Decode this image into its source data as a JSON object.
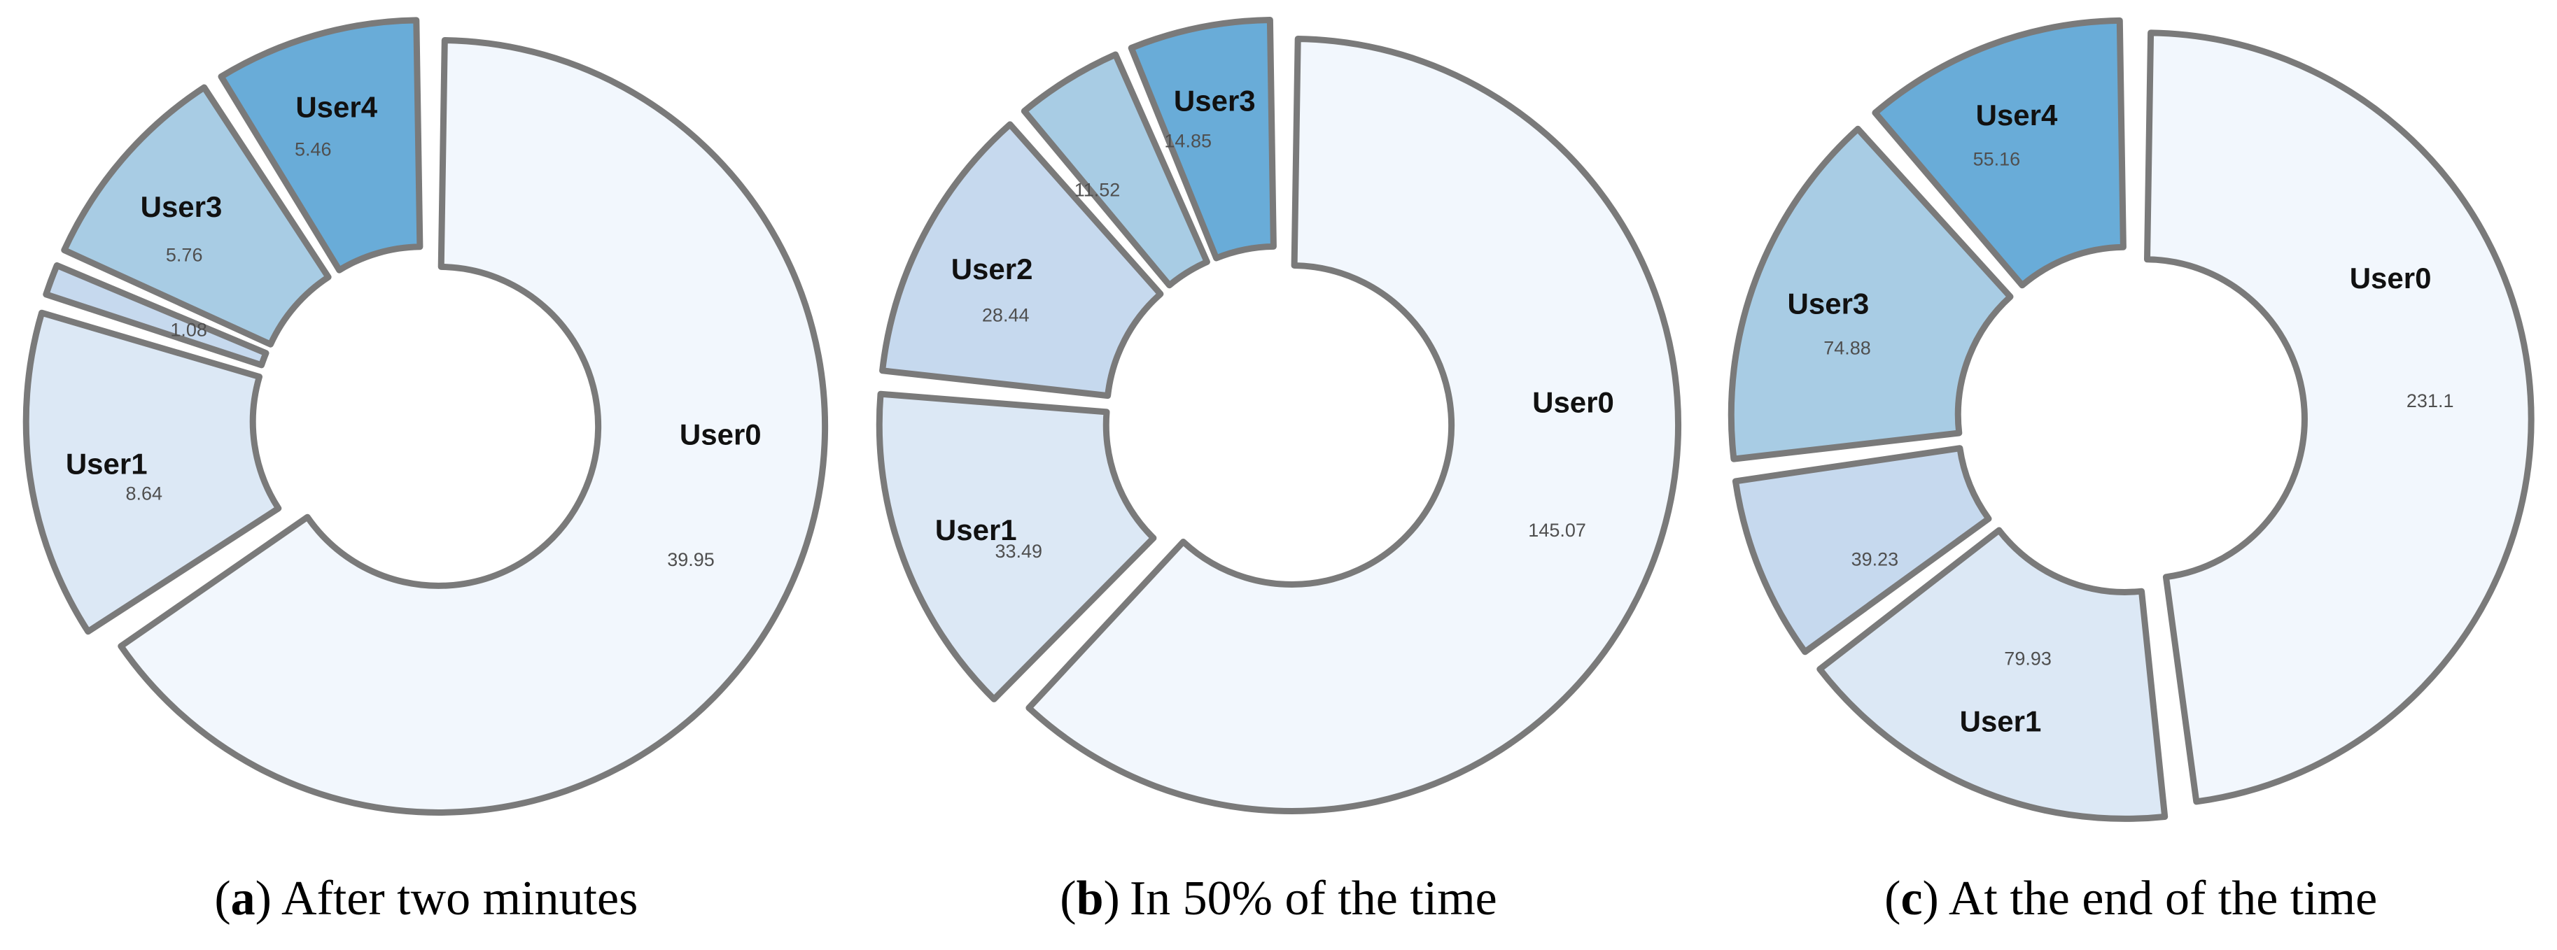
{
  "palette": [
    "#f2f7fd",
    "#dce8f5",
    "#c6d9ee",
    "#a8cce4",
    "#69acd8"
  ],
  "stroke_color": "#7a7a7a",
  "name_color": "#111111",
  "value_color": "#4f4f4f",
  "chart_data": [
    {
      "type": "pie",
      "subtype": "exploded-donut",
      "direction": "clockwise",
      "start_angle_deg": 0,
      "legend_position": "none",
      "caption": {
        "open": "(",
        "letter": "a",
        "close": ")",
        "text": "After two minutes"
      },
      "slices": [
        {
          "name": "User0",
          "value": 39.95
        },
        {
          "name": "User1",
          "value": 8.64
        },
        {
          "name": "",
          "value": 1.08
        },
        {
          "name": "User3",
          "value": 5.76
        },
        {
          "name": "User4",
          "value": 5.46
        }
      ]
    },
    {
      "type": "pie",
      "subtype": "exploded-donut",
      "direction": "clockwise",
      "start_angle_deg": 0,
      "legend_position": "none",
      "caption": {
        "open": "(",
        "letter": "b",
        "close": ")",
        "text": "In 50% of the time"
      },
      "slices": [
        {
          "name": "User0",
          "value": 145.07
        },
        {
          "name": "User1",
          "value": 33.49
        },
        {
          "name": "User2",
          "value": 28.44
        },
        {
          "name": "",
          "value": 11.52
        },
        {
          "name": "User3",
          "value": 14.85
        }
      ]
    },
    {
      "type": "pie",
      "subtype": "exploded-donut",
      "direction": "clockwise",
      "start_angle_deg": 0,
      "legend_position": "none",
      "caption": {
        "open": "(",
        "letter": "c",
        "close": ")",
        "text": "At the end of the time"
      },
      "slices": [
        {
          "name": "User0",
          "value": 231.1
        },
        {
          "name": "User1",
          "value": 79.93,
          "label_layout": "value-above"
        },
        {
          "name": "",
          "value": 39.23
        },
        {
          "name": "User3",
          "value": 74.88
        },
        {
          "name": "User4",
          "value": 55.16
        }
      ]
    }
  ]
}
